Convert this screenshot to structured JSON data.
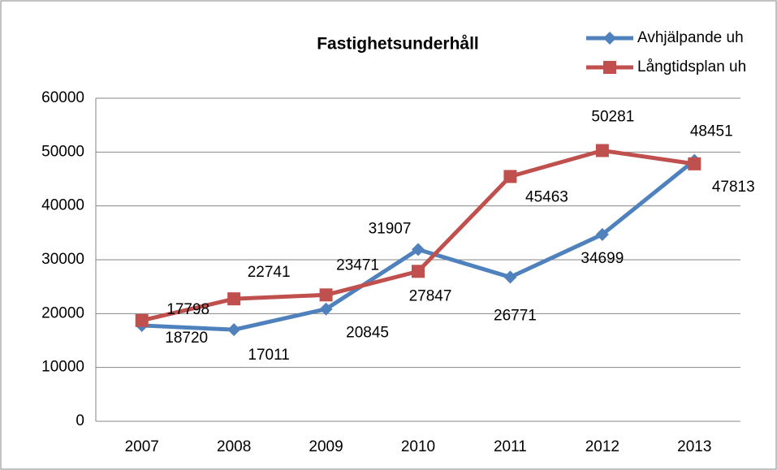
{
  "chart_data": {
    "type": "line",
    "title": "Fastighetsunderhåll",
    "categories": [
      "2007",
      "2008",
      "2009",
      "2010",
      "2011",
      "2012",
      "2013"
    ],
    "series": [
      {
        "name": "Avhjälpande uh",
        "color": "#4f81bd",
        "marker": "diamond",
        "values": [
          17798,
          17011,
          20845,
          31907,
          26771,
          34699,
          48451
        ]
      },
      {
        "name": "Långtidsplan uh",
        "color": "#c0504d",
        "marker": "square",
        "values": [
          18720,
          22741,
          23471,
          27847,
          45463,
          50281,
          47813
        ]
      }
    ],
    "ylim": [
      0,
      60000
    ],
    "yticks": [
      0,
      10000,
      20000,
      30000,
      40000,
      50000,
      60000
    ],
    "grid": true,
    "legend": "top-right"
  }
}
